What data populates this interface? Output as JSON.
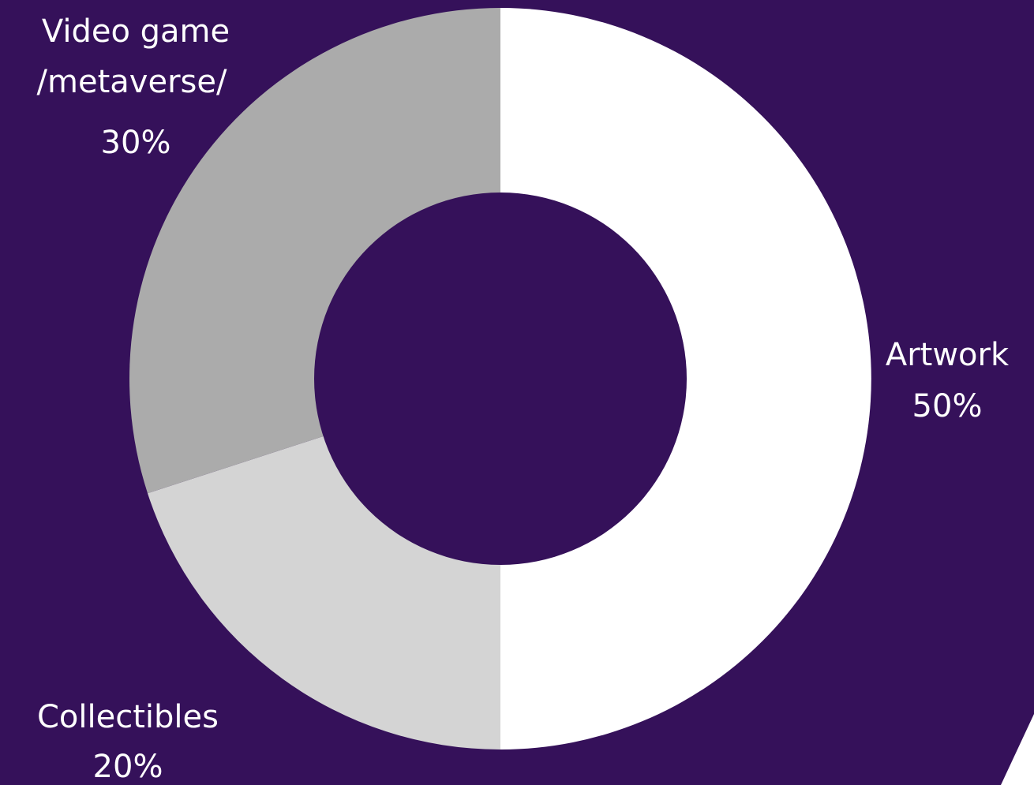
{
  "chart_data": {
    "type": "pie",
    "variant": "donut",
    "slices": [
      {
        "label": "Artwork",
        "value": 50,
        "value_label": "50%",
        "color": "#ffffff"
      },
      {
        "label": "Collectibles",
        "value": 20,
        "value_label": "20%",
        "color": "#d4d4d4"
      },
      {
        "label": "Video game /metaverse/",
        "label_lines": [
          "Video game",
          "/metaverse/"
        ],
        "value": 30,
        "value_label": "30%",
        "color": "#ababab"
      }
    ],
    "title": "",
    "legend": "none",
    "background_color": "#35115a",
    "hole_color": "#35115a"
  }
}
